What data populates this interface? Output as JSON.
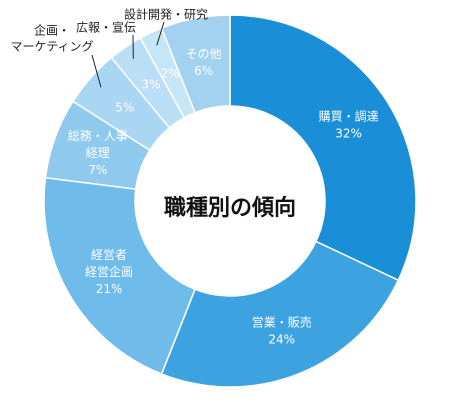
{
  "chart_data": {
    "type": "pie",
    "title": "職種別の傾向",
    "slices": [
      {
        "label_lines": [
          "購買・調達"
        ],
        "pct_label": "32%",
        "value": 32,
        "color": "#1a8fd8"
      },
      {
        "label_lines": [
          "営業・販売"
        ],
        "pct_label": "24%",
        "value": 24,
        "color": "#3ca2e0"
      },
      {
        "label_lines": [
          "経営者",
          "経営企画"
        ],
        "pct_label": "21%",
        "value": 21,
        "color": "#6fbbe9"
      },
      {
        "label_lines": [
          "総務・人事",
          "経理"
        ],
        "pct_label": "7%",
        "value": 7,
        "color": "#8fcaee"
      },
      {
        "label_lines": [
          "企画・",
          "マーケティング"
        ],
        "pct_label": "5%",
        "value": 5,
        "color": "#a9d6f2"
      },
      {
        "label_lines": [
          "広報・宣伝"
        ],
        "pct_label": "3%",
        "value": 3,
        "color": "#b9def5"
      },
      {
        "label_lines": [
          "設計開発・研究"
        ],
        "pct_label": "2%",
        "value": 2,
        "color": "#c6e5f7"
      },
      {
        "label_lines": [
          "その他"
        ],
        "pct_label": "6%",
        "value": 6,
        "color": "#a3d2f1"
      }
    ]
  }
}
